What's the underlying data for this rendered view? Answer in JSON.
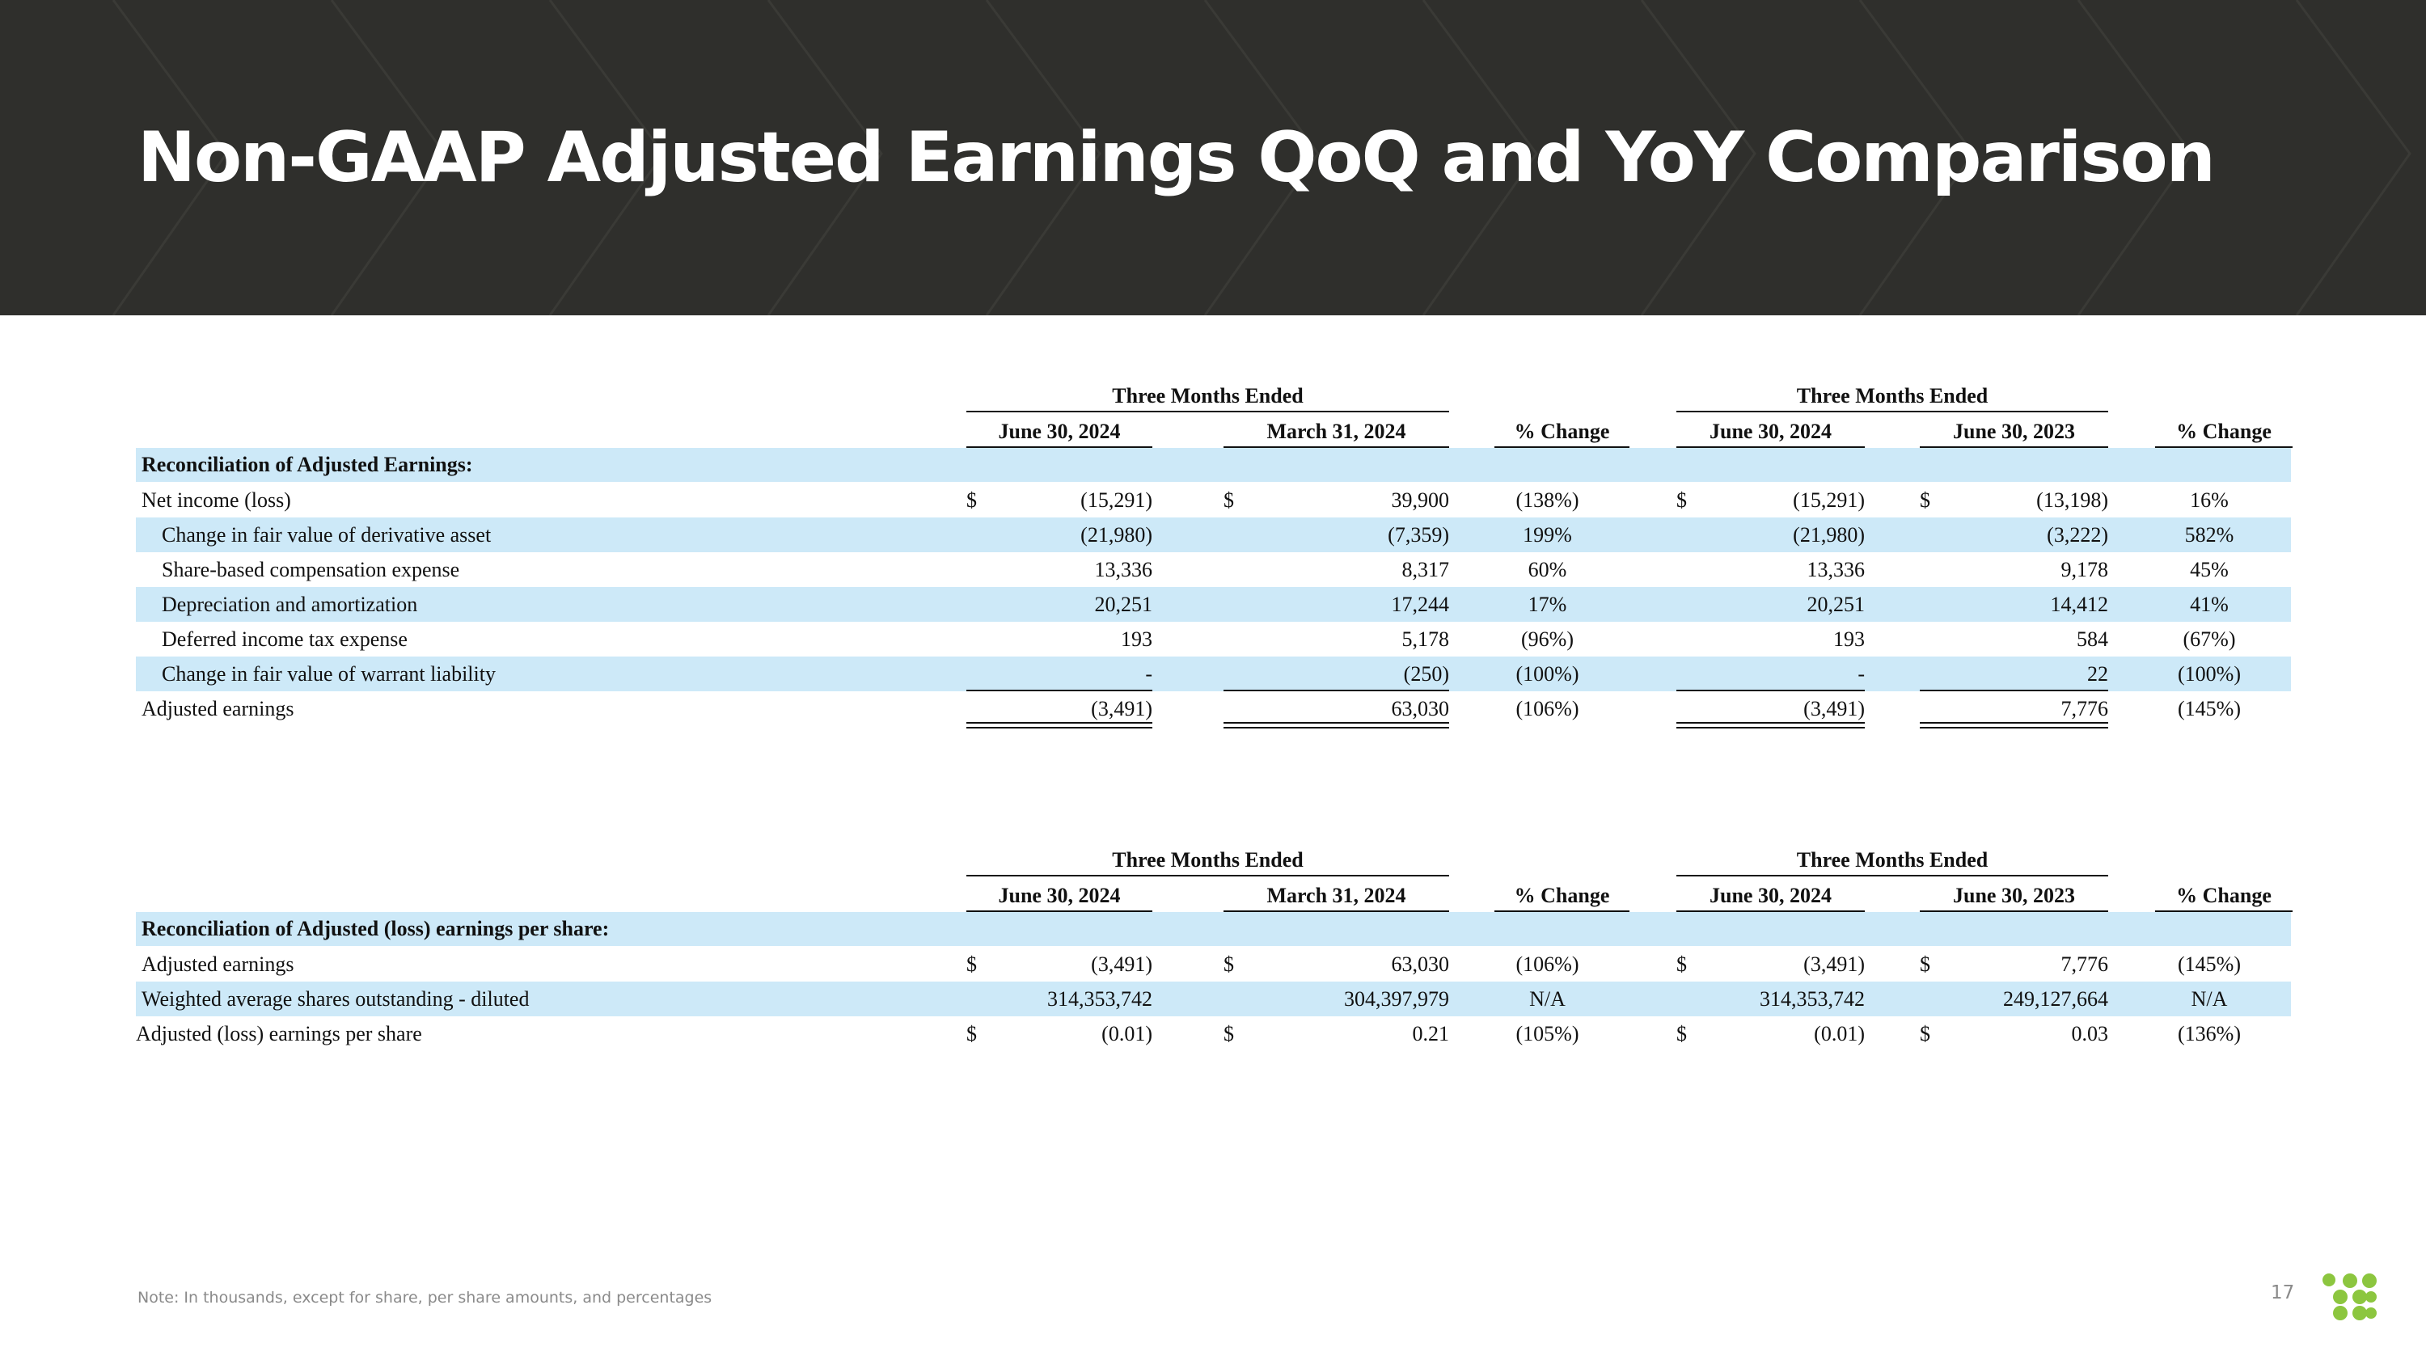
{
  "title": "Non-GAAP Adjusted Earnings QoQ and YoY Comparison",
  "table1": {
    "group_qoq": "Three Months Ended",
    "group_yoy": "Three Months Ended",
    "col_q1": "June 30, 2024",
    "col_q2": "March 31, 2024",
    "col_pct1": "% Change",
    "col_y1": "June 30, 2024",
    "col_y2": "June 30, 2023",
    "col_pct2": "% Change",
    "section": "Reconciliation of Adjusted Earnings:",
    "rows": [
      {
        "label": "Net income (loss)",
        "q1": "(15,291)",
        "q2": "39,900",
        "p1": "(138%)",
        "y1": "(15,291)",
        "y2": "(13,198)",
        "p2": "16%"
      },
      {
        "label": "Change in fair value of derivative asset",
        "q1": "(21,980)",
        "q2": "(7,359)",
        "p1": "199%",
        "y1": "(21,980)",
        "y2": "(3,222)",
        "p2": "582%"
      },
      {
        "label": "Share-based compensation expense",
        "q1": "13,336",
        "q2": "8,317",
        "p1": "60%",
        "y1": "13,336",
        "y2": "9,178",
        "p2": "45%"
      },
      {
        "label": "Depreciation and amortization",
        "q1": "20,251",
        "q2": "17,244",
        "p1": "17%",
        "y1": "20,251",
        "y2": "14,412",
        "p2": "41%"
      },
      {
        "label": "Deferred income tax expense",
        "q1": "193",
        "q2": "5,178",
        "p1": "(96%)",
        "y1": "193",
        "y2": "584",
        "p2": "(67%)"
      },
      {
        "label": "Change in fair value of warrant liability",
        "q1": "-",
        "q2": "(250)",
        "p1": "(100%)",
        "y1": "-",
        "y2": "22",
        "p2": "(100%)"
      },
      {
        "label": "Adjusted earnings",
        "q1": "(3,491)",
        "q2": "63,030",
        "p1": "(106%)",
        "y1": "(3,491)",
        "y2": "7,776",
        "p2": "(145%)"
      }
    ]
  },
  "table2": {
    "group_qoq": "Three Months Ended",
    "group_yoy": "Three Months Ended",
    "col_q1": "June 30, 2024",
    "col_q2": "March 31, 2024",
    "col_pct1": "% Change",
    "col_y1": "June 30, 2024",
    "col_y2": "June 30, 2023",
    "col_pct2": "% Change",
    "section": "Reconciliation of Adjusted (loss) earnings per share:",
    "rows": [
      {
        "label": "Adjusted earnings",
        "q1": "(3,491)",
        "q2": "63,030",
        "p1": "(106%)",
        "y1": "(3,491)",
        "y2": "7,776",
        "p2": "(145%)"
      },
      {
        "label": "Weighted average shares outstanding - diluted",
        "q1": "314,353,742",
        "q2": "304,397,979",
        "p1": "N/A",
        "y1": "314,353,742",
        "y2": "249,127,664",
        "p2": "N/A"
      },
      {
        "label": "Adjusted (loss) earnings per share",
        "q1": "(0.01)",
        "q2": "0.21",
        "p1": "(105%)",
        "y1": "(0.01)",
        "y2": "0.03",
        "p2": "(136%)"
      }
    ]
  },
  "currency_symbol": "$",
  "note": "Note: In thousands, except for share, per share amounts, and percentages",
  "page_number": "17",
  "colors": {
    "header_bg": "#2f2f2c",
    "band": "#cde9f8",
    "logo": "#8cc63f"
  }
}
